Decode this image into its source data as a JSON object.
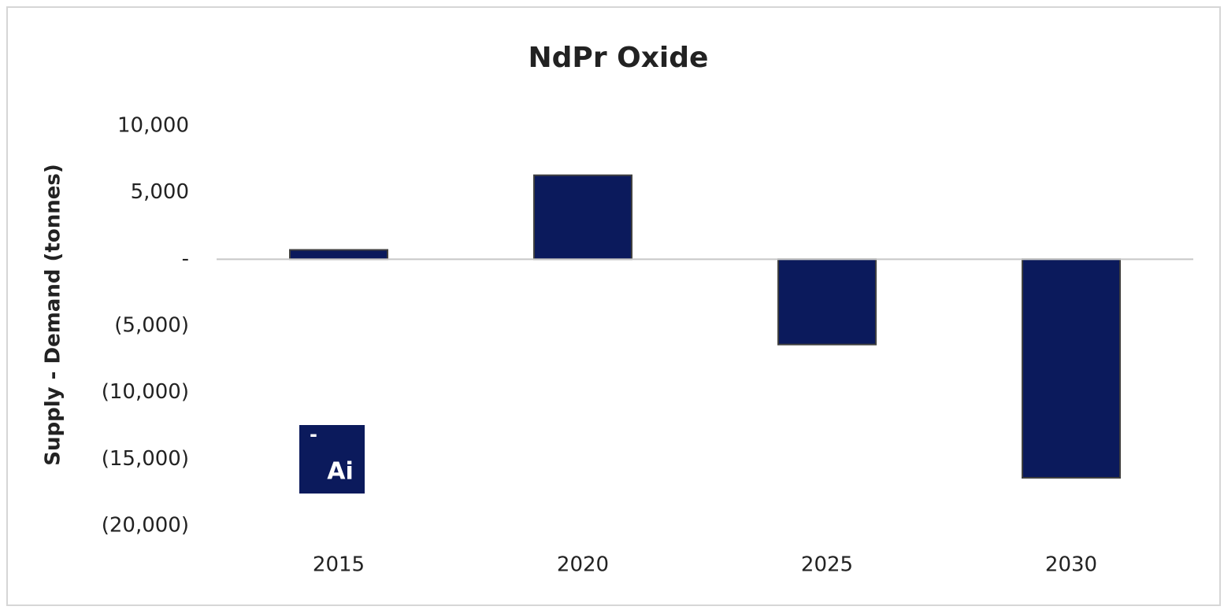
{
  "chart_data": {
    "type": "bar",
    "title": "NdPr Oxide",
    "y_label": "Supply - Demand (tonnes)",
    "categories": [
      "2015",
      "2020",
      "2025",
      "2030"
    ],
    "values": [
      700,
      6300,
      -6400,
      -16400
    ],
    "color": "#0b1a5c",
    "ylim": [
      -20000,
      10000
    ],
    "yticks": [
      {
        "value": 10000,
        "label": "10,000"
      },
      {
        "value": 5000,
        "label": "5,000"
      },
      {
        "value": 0,
        "label": "-"
      },
      {
        "value": -5000,
        "label": "(5,000)"
      },
      {
        "value": -10000,
        "label": "(10,000)"
      },
      {
        "value": -15000,
        "label": "(15,000)"
      },
      {
        "value": -20000,
        "label": "(20,000)"
      }
    ],
    "grid": false
  },
  "logo": {
    "mark": "-",
    "text": "Ai"
  }
}
